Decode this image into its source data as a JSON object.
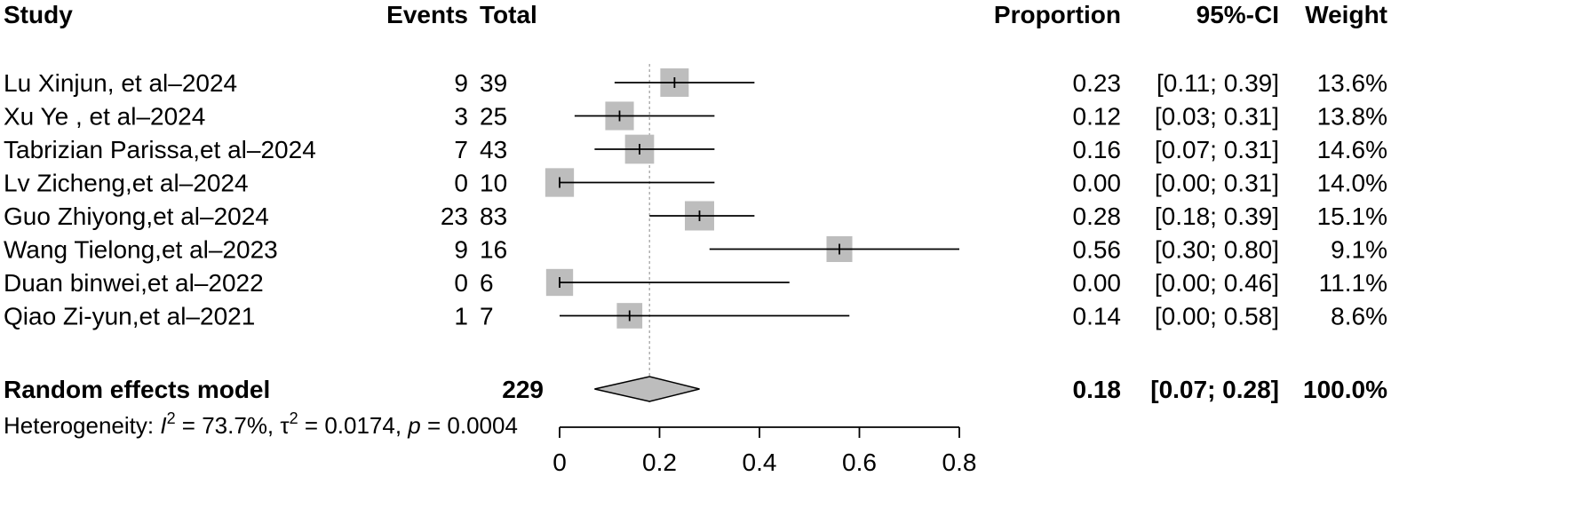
{
  "header": {
    "study": "Study",
    "events": "Events",
    "total": "Total",
    "proportion": "Proportion",
    "ci": "95%-CI",
    "weight": "Weight"
  },
  "chart_data": {
    "type": "forest",
    "xlim": [
      0,
      0.8
    ],
    "ticks": [
      "0",
      "0.2",
      "0.4",
      "0.6",
      "0.8"
    ],
    "tick_values": [
      0,
      0.2,
      0.4,
      0.6,
      0.8
    ],
    "reference_line": 0.18,
    "studies": [
      {
        "study": "Lu Xinjun, et al–2024",
        "events": "9",
        "total": "39",
        "proportion": 0.23,
        "lower": 0.11,
        "upper": 0.39,
        "proportion_text": "0.23",
        "ci_text": "[0.11; 0.39]",
        "weight_text": "13.6%",
        "weight": 13.6
      },
      {
        "study": "Xu Ye , et al–2024",
        "events": "3",
        "total": "25",
        "proportion": 0.12,
        "lower": 0.03,
        "upper": 0.31,
        "proportion_text": "0.12",
        "ci_text": "[0.03; 0.31]",
        "weight_text": "13.8%",
        "weight": 13.8
      },
      {
        "study": "Tabrizian Parissa,et al–2024",
        "events": "7",
        "total": "43",
        "proportion": 0.16,
        "lower": 0.07,
        "upper": 0.31,
        "proportion_text": "0.16",
        "ci_text": "[0.07; 0.31]",
        "weight_text": "14.6%",
        "weight": 14.6
      },
      {
        "study": "Lv Zicheng,et al–2024",
        "events": "0",
        "total": "10",
        "proportion": 0.0,
        "lower": 0.0,
        "upper": 0.31,
        "proportion_text": "0.00",
        "ci_text": "[0.00; 0.31]",
        "weight_text": "14.0%",
        "weight": 14.0
      },
      {
        "study": "Guo Zhiyong,et al–2024",
        "events": "23",
        "total": "83",
        "proportion": 0.28,
        "lower": 0.18,
        "upper": 0.39,
        "proportion_text": "0.28",
        "ci_text": "[0.18; 0.39]",
        "weight_text": "15.1%",
        "weight": 15.1
      },
      {
        "study": "Wang Tielong,et al–2023",
        "events": "9",
        "total": "16",
        "proportion": 0.56,
        "lower": 0.3,
        "upper": 0.8,
        "proportion_text": "0.56",
        "ci_text": "[0.30; 0.80]",
        "weight_text": "9.1%",
        "weight": 9.1
      },
      {
        "study": "Duan binwei,et al–2022",
        "events": "0",
        "total": "6",
        "proportion": 0.0,
        "lower": 0.0,
        "upper": 0.46,
        "proportion_text": "0.00",
        "ci_text": "[0.00; 0.46]",
        "weight_text": "11.1%",
        "weight": 11.1
      },
      {
        "study": "Qiao Zi-yun,et al–2021",
        "events": "1",
        "total": "7",
        "proportion": 0.14,
        "lower": 0.0,
        "upper": 0.58,
        "proportion_text": "0.14",
        "ci_text": "[0.00; 0.58]",
        "weight_text": "8.6%",
        "weight": 8.6
      }
    ],
    "pooled": {
      "label": "Random effects model",
      "total": "229",
      "proportion": 0.18,
      "lower": 0.07,
      "upper": 0.28,
      "proportion_text": "0.18",
      "ci_text": "[0.07; 0.28]",
      "weight_text": "100.0%"
    },
    "heterogeneity": {
      "prefix": "Heterogeneity: ",
      "i2_symbol": "I",
      "sup": "2",
      "i2_value": " = 73.7%, ",
      "tau_symbol": "τ",
      "tau_value": " = 0.0174, ",
      "p_symbol": "p",
      "p_value": " = 0.0004"
    },
    "colors": {
      "box": "#bdbdbd",
      "diamond": "#bdbdbd",
      "line": "#000000",
      "reference": "#b0b0b0"
    }
  }
}
